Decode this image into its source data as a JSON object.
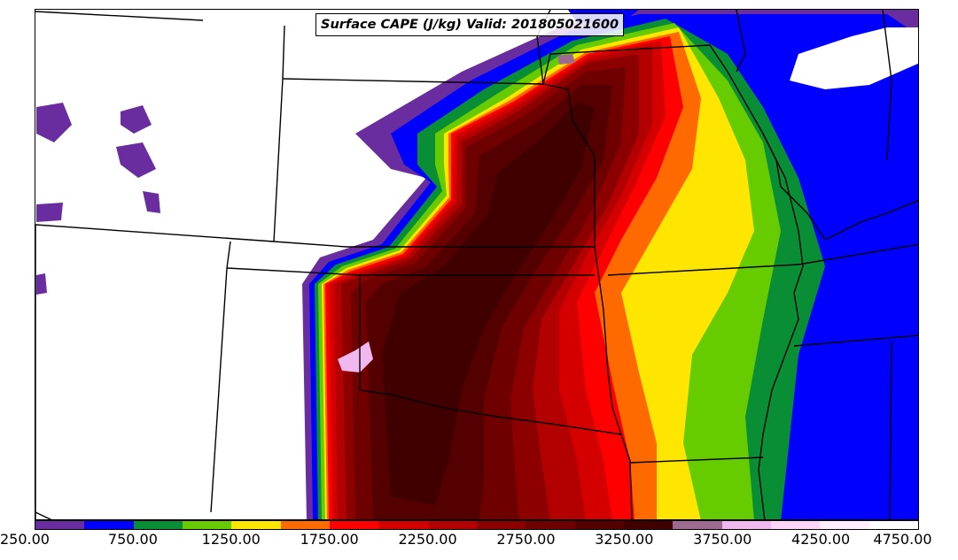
{
  "title": "Surface CAPE (J/kg) Valid: 201805021600",
  "colorbar": {
    "colors": [
      "#6a2d9f",
      "#0000ff",
      "#0a8e35",
      "#66cc00",
      "#ffe600",
      "#ff6a00",
      "#ff0000",
      "#d40000",
      "#b30000",
      "#8c0000",
      "#6e0000",
      "#550000",
      "#400000",
      "#9c6b8f",
      "#f0b8ee",
      "#fdd5f7",
      "#ffeefd",
      "#ffffff"
    ],
    "tick_labels": [
      "250.00",
      "750.00",
      "1250.00",
      "1750.00",
      "2250.00",
      "2750.00",
      "3250.00",
      "3750.00",
      "4250.00",
      "4750.00"
    ]
  }
}
